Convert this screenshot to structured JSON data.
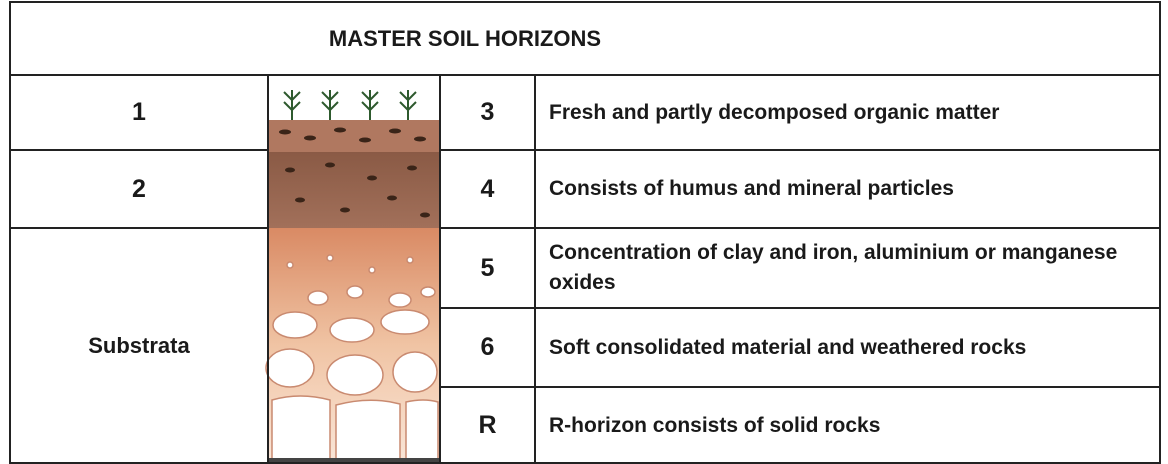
{
  "header": {
    "title": "MASTER SOIL HORIZONS"
  },
  "left_labels": [
    "1",
    "2",
    "Substrata"
  ],
  "rows": [
    {
      "number": "3",
      "description": "Fresh and partly decomposed organic matter"
    },
    {
      "number": "4",
      "description": "Consists of humus and mineral particles"
    },
    {
      "number": "5",
      "description": "Concentration of clay and iron, aluminium or manganese oxides"
    },
    {
      "number": "6",
      "description": "Soft consolidated material and weathered rocks"
    },
    {
      "number": "R",
      "description": "R-horizon consists of solid rocks"
    }
  ]
}
